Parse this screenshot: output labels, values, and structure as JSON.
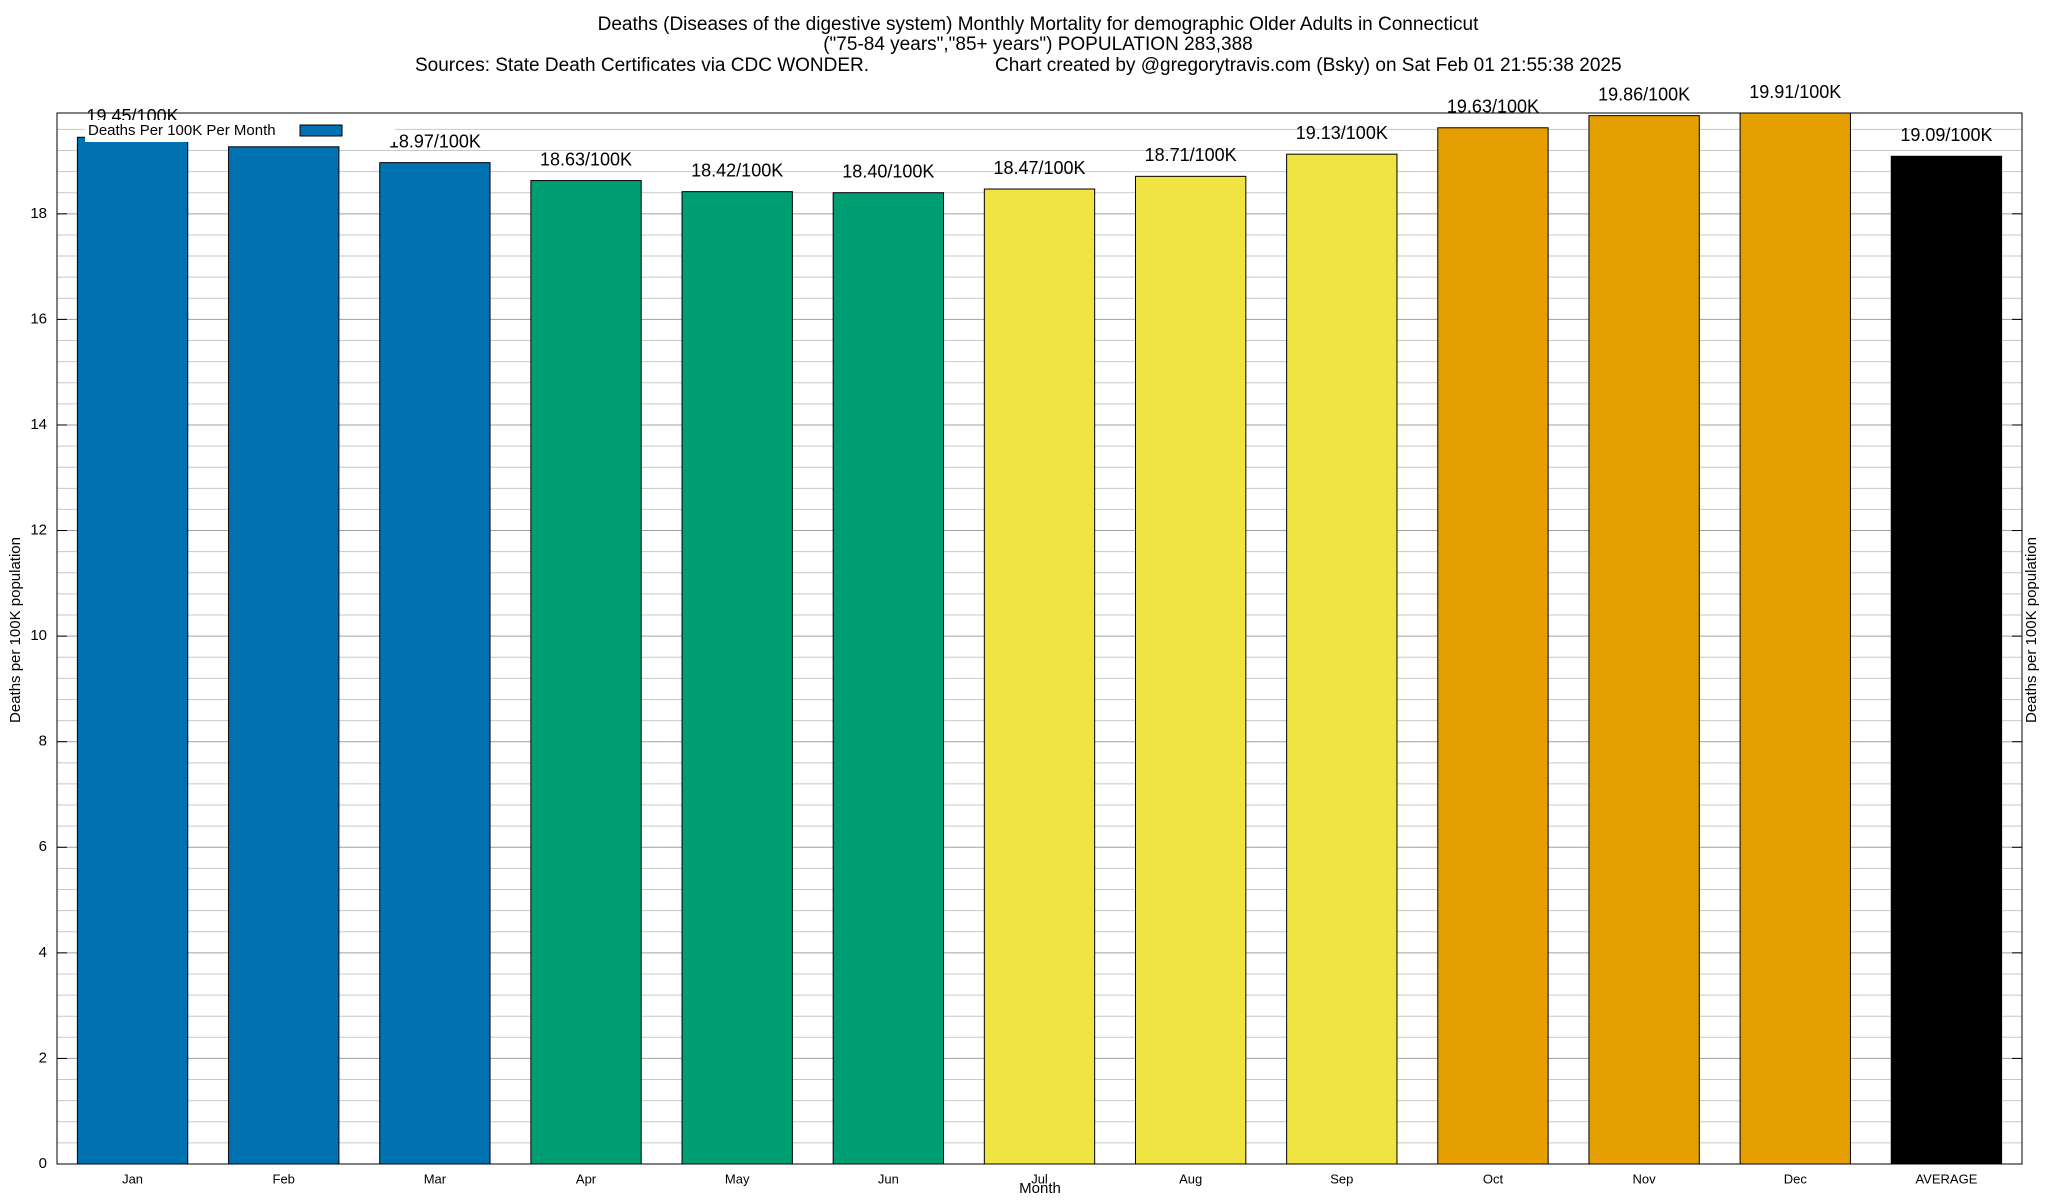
{
  "chart_data": {
    "type": "bar",
    "title": [
      "Deaths (Diseases of the digestive system) Monthly Mortality for demographic Older Adults in Connecticut",
      "(\"75-84 years\",\"85+ years\") POPULATION 283,388"
    ],
    "subtitle": "Sources: State Death Certificates via CDC WONDER.",
    "credit": "Chart created by @gregorytravis.com (Bsky) on Sat Feb 01 21:55:38 2025",
    "x_label": "Month",
    "y_label": "Deaths per 100K population",
    "y2_label": "Deaths per 100K population",
    "legend": "Deaths Per 100K Per Month",
    "legend_color": "#0072b2",
    "legend_corner": "top-left",
    "categories": [
      "Jan",
      "Feb",
      "Mar",
      "Apr",
      "May",
      "Jun",
      "Jul",
      "Aug",
      "Sep",
      "Oct",
      "Nov",
      "Dec",
      "AVERAGE"
    ],
    "values": [
      19.45,
      19.27,
      18.97,
      18.63,
      18.42,
      18.4,
      18.47,
      18.71,
      19.13,
      19.63,
      19.86,
      19.91,
      19.09
    ],
    "value_labels": [
      "19.45/100K",
      null,
      "18.97/100K",
      "18.63/100K",
      "18.42/100K",
      "18.40/100K",
      "18.47/100K",
      "18.71/100K",
      "19.13/100K",
      "19.63/100K",
      "19.86/100K",
      "19.91/100K",
      "19.09/100K"
    ],
    "colors": [
      "#0072b2",
      "#0072b2",
      "#0072b2",
      "#009e73",
      "#009e73",
      "#009e73",
      "#f0e442",
      "#f0e442",
      "#f0e442",
      "#e69f00",
      "#e69f00",
      "#e69f00",
      "#000000"
    ],
    "ylim": [
      0,
      19.91
    ],
    "yticks": [
      0,
      2,
      4,
      6,
      8,
      10,
      12,
      14,
      16,
      18
    ],
    "grid": true,
    "minor_per_major": 5
  }
}
